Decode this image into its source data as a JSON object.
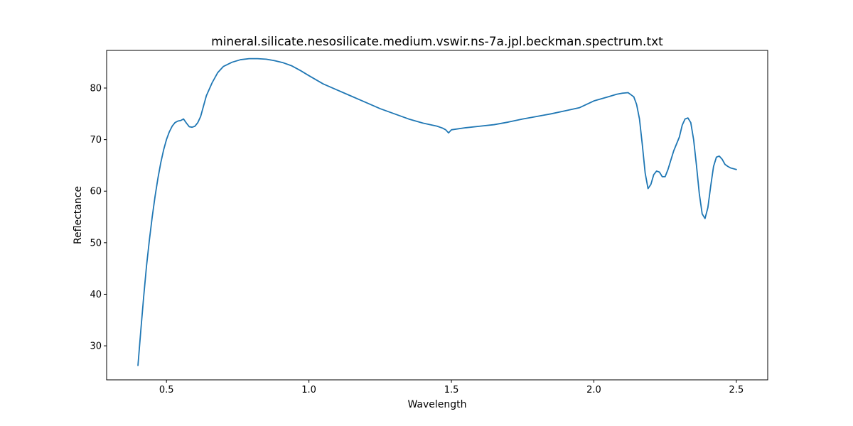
{
  "chart_data": {
    "type": "line",
    "title": "mineral.silicate.nesosilicate.medium.vswir.ns-7a.jpl.beckman.spectrum.txt",
    "xlabel": "Wavelength",
    "ylabel": "Reflectance",
    "xlim": [
      0.29,
      2.61
    ],
    "ylim": [
      23.4,
      87.3
    ],
    "xticks": [
      0.5,
      1.0,
      1.5,
      2.0,
      2.5
    ],
    "xtick_labels": [
      "0.5",
      "1.0",
      "1.5",
      "2.0",
      "2.5"
    ],
    "yticks": [
      30,
      40,
      50,
      60,
      70,
      80
    ],
    "ytick_labels": [
      "30",
      "40",
      "50",
      "60",
      "70",
      "80"
    ],
    "grid": false,
    "legend": "none",
    "series": [
      {
        "color": "#1f77b4",
        "x": [
          0.4,
          0.41,
          0.42,
          0.43,
          0.44,
          0.45,
          0.46,
          0.47,
          0.48,
          0.49,
          0.5,
          0.51,
          0.52,
          0.53,
          0.54,
          0.55,
          0.56,
          0.57,
          0.58,
          0.59,
          0.6,
          0.61,
          0.62,
          0.63,
          0.64,
          0.66,
          0.68,
          0.7,
          0.73,
          0.76,
          0.79,
          0.82,
          0.85,
          0.88,
          0.91,
          0.94,
          0.97,
          1.0,
          1.05,
          1.1,
          1.15,
          1.2,
          1.25,
          1.3,
          1.35,
          1.4,
          1.45,
          1.46,
          1.47,
          1.48,
          1.49,
          1.5,
          1.55,
          1.6,
          1.65,
          1.7,
          1.75,
          1.8,
          1.85,
          1.9,
          1.95,
          2.0,
          2.05,
          2.08,
          2.1,
          2.12,
          2.14,
          2.15,
          2.16,
          2.17,
          2.18,
          2.19,
          2.2,
          2.21,
          2.22,
          2.23,
          2.24,
          2.25,
          2.26,
          2.27,
          2.28,
          2.3,
          2.31,
          2.32,
          2.33,
          2.34,
          2.35,
          2.36,
          2.37,
          2.38,
          2.39,
          2.4,
          2.41,
          2.42,
          2.43,
          2.44,
          2.45,
          2.46,
          2.47,
          2.48,
          2.5
        ],
        "y": [
          26.2,
          33.0,
          39.5,
          45.5,
          50.5,
          55.0,
          59.0,
          62.5,
          65.5,
          68.0,
          70.0,
          71.5,
          72.6,
          73.3,
          73.6,
          73.7,
          74.0,
          73.2,
          72.5,
          72.4,
          72.6,
          73.3,
          74.5,
          76.5,
          78.5,
          81.0,
          83.0,
          84.2,
          85.0,
          85.5,
          85.7,
          85.7,
          85.6,
          85.3,
          84.9,
          84.3,
          83.4,
          82.4,
          80.8,
          79.6,
          78.4,
          77.2,
          76.0,
          75.0,
          74.0,
          73.2,
          72.6,
          72.4,
          72.2,
          71.9,
          71.3,
          71.9,
          72.3,
          72.6,
          72.9,
          73.4,
          74.0,
          74.5,
          75.0,
          75.6,
          76.2,
          77.5,
          78.3,
          78.8,
          79.0,
          79.1,
          78.3,
          76.8,
          74.0,
          69.0,
          63.5,
          60.5,
          61.3,
          63.2,
          63.9,
          63.7,
          62.8,
          62.8,
          64.2,
          66.0,
          67.8,
          70.5,
          72.8,
          74.0,
          74.2,
          73.3,
          70.0,
          65.0,
          59.5,
          55.6,
          54.7,
          56.8,
          61.0,
          64.8,
          66.6,
          66.8,
          66.2,
          65.2,
          64.8,
          64.5,
          64.2
        ]
      }
    ]
  }
}
